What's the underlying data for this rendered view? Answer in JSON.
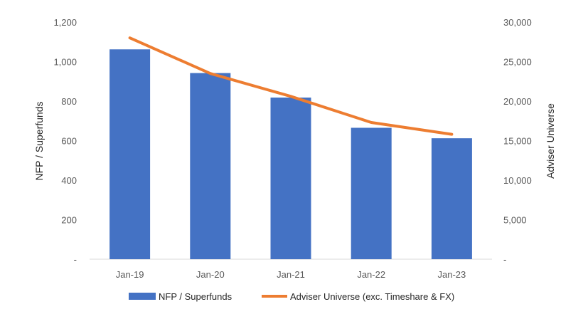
{
  "chart_data": {
    "type": "bar",
    "categories": [
      "Jan-19",
      "Jan-20",
      "Jan-21",
      "Jan-22",
      "Jan-23"
    ],
    "series": [
      {
        "name": "NFP / Superfunds",
        "type": "bar",
        "axis": "left",
        "color": "#4472C4",
        "values": [
          1062,
          942,
          818,
          665,
          612
        ]
      },
      {
        "name": "Adviser Universe (exc. Timeshare & FX)",
        "type": "line",
        "axis": "right",
        "color": "#ED7D31",
        "values": [
          28000,
          23500,
          20600,
          17300,
          15800
        ]
      }
    ],
    "ylabel": "NFP / Superfunds",
    "y2label": "Adviser Universe",
    "ylim": [
      0,
      1200
    ],
    "y2lim": [
      0,
      30000
    ],
    "yticks": [
      "-",
      "200",
      "400",
      "600",
      "800",
      "1,000",
      "1,200"
    ],
    "y2ticks": [
      "-",
      "5,000",
      "10,000",
      "15,000",
      "20,000",
      "25,000",
      "30,000"
    ],
    "grid": false,
    "legend_position": "bottom"
  }
}
